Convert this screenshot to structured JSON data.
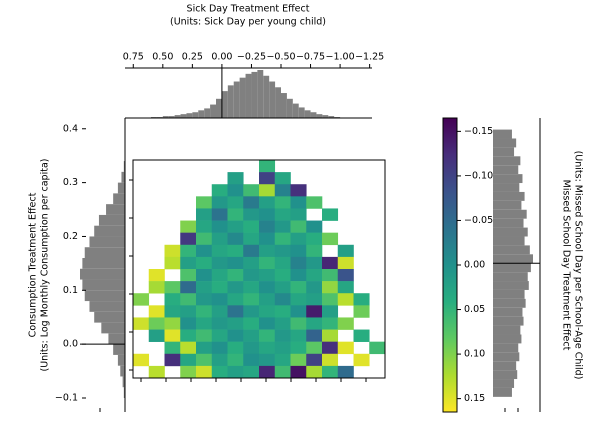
{
  "chart_data": [
    {
      "type": "histogram",
      "orientation": "vertical",
      "title": "Sick Day Treatment Effect",
      "subtitle": "(Units: Sick Day per young child)",
      "bins": [
        0.6,
        0.55,
        0.5,
        0.45,
        0.4,
        0.35,
        0.3,
        0.25,
        0.2,
        0.15,
        0.1,
        0.05,
        0,
        -0.05,
        -0.1,
        -0.15,
        -0.2,
        -0.25,
        -0.3,
        -0.35,
        -0.4,
        -0.45,
        -0.5,
        -0.55,
        -0.6,
        -0.65,
        -0.7,
        -0.75,
        -0.8,
        -0.85,
        -0.9,
        -0.95,
        -1.0
      ],
      "counts": [
        1,
        1,
        2,
        2,
        3,
        4,
        5,
        6,
        8,
        10,
        14,
        20,
        28,
        34,
        38,
        42,
        46,
        48,
        50,
        44,
        38,
        32,
        26,
        20,
        15,
        11,
        8,
        6,
        4,
        3,
        2,
        1
      ],
      "color": "#808080",
      "reference_line": 0,
      "xlim": [
        0.82,
        -1.27
      ],
      "xticks": [
        0.75,
        {
          "value": 0.5,
          "label": "0.50"
        },
        0.25,
        {
          "value": 0,
          "label": "0.00"
        },
        {
          "value": -0.25,
          "label": "−0.25"
        },
        {
          "value": -0.5,
          "label": "−0.50"
        },
        {
          "value": -0.75,
          "label": "−0.75"
        },
        {
          "value": -1,
          "label": "−1.00"
        },
        {
          "value": -1.25,
          "label": "−1.25"
        }
      ]
    },
    {
      "type": "histogram",
      "orientation": "horizontal",
      "y_label": "Consumption Treatment Effect",
      "y_sublabel": "(Units: Log Monthly Consumption per capita)",
      "bins": [
        -0.1,
        -0.08,
        -0.06,
        -0.04,
        -0.02,
        0,
        0.02,
        0.04,
        0.06,
        0.08,
        0.1,
        0.12,
        0.14,
        0.16,
        0.18,
        0.2,
        0.22,
        0.24,
        0.26,
        0.28,
        0.3,
        0.32,
        0.34
      ],
      "counts": [
        1,
        2,
        4,
        6,
        10,
        14,
        20,
        26,
        30,
        34,
        36,
        38,
        36,
        34,
        30,
        26,
        22,
        16,
        10,
        6,
        3,
        1
      ],
      "color": "#808080",
      "reference_line": 0,
      "ylim": [
        -0.126,
        0.42
      ],
      "yticks": [
        0.4,
        0.3,
        0.2,
        0.1,
        {
          "value": 0,
          "label": "0.0"
        },
        {
          "value": -0.1,
          "label": "−0.1"
        }
      ]
    },
    {
      "type": "heatmap",
      "colormap": "viridis",
      "clim": [
        -0.165,
        0.165
      ],
      "cticks": [
        {
          "value": -0.15,
          "label": "−0.15"
        },
        {
          "value": -0.1,
          "label": "−0.10"
        },
        {
          "value": -0.05,
          "label": "−0.05"
        },
        {
          "value": 0,
          "label": "0.00"
        },
        0.05,
        {
          "value": 0.1,
          "label": "0.10"
        },
        0.15
      ],
      "values": [
        [
          null,
          null,
          null,
          null,
          null,
          null,
          null,
          null,
          0.05,
          null,
          null,
          null,
          null,
          null,
          null,
          null
        ],
        [
          null,
          null,
          null,
          null,
          null,
          null,
          0.02,
          null,
          -0.1,
          0.03,
          null,
          null,
          null,
          null,
          null,
          null
        ],
        [
          null,
          null,
          null,
          null,
          null,
          0.04,
          0.0,
          0.06,
          0.12,
          -0.02,
          -0.12,
          null,
          null,
          null,
          null,
          null
        ],
        [
          null,
          null,
          null,
          null,
          0.08,
          0.01,
          0.03,
          -0.03,
          0.02,
          0.05,
          0.0,
          0.07,
          null,
          null,
          null,
          null
        ],
        [
          null,
          null,
          null,
          null,
          0.02,
          -0.04,
          0.05,
          0.01,
          0.0,
          0.03,
          0.02,
          null,
          0.04,
          null,
          null,
          null
        ],
        [
          null,
          null,
          null,
          0.1,
          0.03,
          0.0,
          0.02,
          0.04,
          -0.02,
          0.01,
          0.06,
          0.0,
          null,
          null,
          null,
          null
        ],
        [
          null,
          null,
          null,
          -0.11,
          0.06,
          0.02,
          -0.01,
          0.03,
          0.0,
          0.05,
          0.02,
          0.04,
          0.09,
          null,
          null,
          null
        ],
        [
          null,
          null,
          0.14,
          0.05,
          0.0,
          0.03,
          0.04,
          -0.03,
          0.02,
          0.01,
          0.0,
          0.05,
          null,
          0.02,
          null,
          null
        ],
        [
          null,
          null,
          0.13,
          0.02,
          0.04,
          0.01,
          0.0,
          0.02,
          0.05,
          0.03,
          -0.02,
          0.01,
          -0.13,
          0.14,
          null,
          null
        ],
        [
          null,
          0.15,
          null,
          0.07,
          0.0,
          0.03,
          0.05,
          0.01,
          0.02,
          0.04,
          0.0,
          0.03,
          0.06,
          -0.08,
          null,
          null
        ],
        [
          null,
          0.12,
          0.08,
          -0.05,
          0.02,
          0.04,
          0.01,
          0.03,
          0.0,
          0.02,
          0.05,
          0.01,
          0.11,
          0.03,
          null,
          null
        ],
        [
          0.1,
          null,
          0.04,
          0.06,
          0.01,
          0.0,
          0.03,
          0.05,
          0.02,
          -0.01,
          0.03,
          0.02,
          0.07,
          0.13,
          0.04,
          null
        ],
        [
          null,
          0.15,
          0.03,
          0.02,
          0.05,
          0.02,
          -0.04,
          0.01,
          0.03,
          0.04,
          0.0,
          -0.14,
          0.02,
          null,
          0.09,
          null
        ],
        [
          0.14,
          0.09,
          0.11,
          0.0,
          0.03,
          0.01,
          0.02,
          0.04,
          0.0,
          0.02,
          0.06,
          0.03,
          0.05,
          0.1,
          null,
          null
        ],
        [
          null,
          0.02,
          0.15,
          0.04,
          0.06,
          0.03,
          0.0,
          0.02,
          0.05,
          0.01,
          0.03,
          -0.06,
          0.12,
          null,
          0.04,
          null
        ],
        [
          null,
          null,
          0.05,
          0.13,
          0.02,
          0.0,
          0.04,
          0.01,
          0.03,
          0.02,
          0.04,
          0.08,
          -0.12,
          0.15,
          null,
          0.06
        ],
        [
          0.15,
          null,
          -0.12,
          0.03,
          0.07,
          0.02,
          0.05,
          0.0,
          0.01,
          0.03,
          0.09,
          -0.1,
          0.14,
          null,
          0.15,
          null
        ],
        [
          null,
          0.13,
          null,
          0.1,
          0.14,
          0.04,
          0.02,
          0.03,
          -0.13,
          0.06,
          -0.15,
          0.12,
          0.05,
          -0.05,
          null,
          null
        ]
      ]
    },
    {
      "type": "histogram",
      "orientation": "horizontal-right",
      "y_label": "Missed School Day Treatment Effect",
      "y_sublabel": "(Units: Missed School Day per School-Age Child)",
      "bins": [
        -0.15,
        -0.14,
        -0.13,
        -0.12,
        -0.11,
        -0.1,
        -0.09,
        -0.08,
        -0.07,
        -0.06,
        -0.05,
        -0.04,
        -0.03,
        -0.02,
        -0.01,
        0,
        0.01,
        0.02,
        0.03,
        0.04,
        0.05,
        0.06,
        0.07,
        0.08,
        0.09,
        0.1,
        0.11,
        0.12,
        0.13,
        0.14,
        0.15
      ],
      "counts": [
        18,
        22,
        20,
        26,
        24,
        28,
        25,
        30,
        27,
        32,
        29,
        33,
        30,
        35,
        38,
        36,
        33,
        34,
        30,
        31,
        28,
        29,
        26,
        27,
        24,
        25,
        22,
        23,
        20,
        18
      ],
      "color": "#808080",
      "reference_line": 0,
      "ylim": [
        -0.163,
        0.167
      ],
      "y_inverted": true
    }
  ]
}
